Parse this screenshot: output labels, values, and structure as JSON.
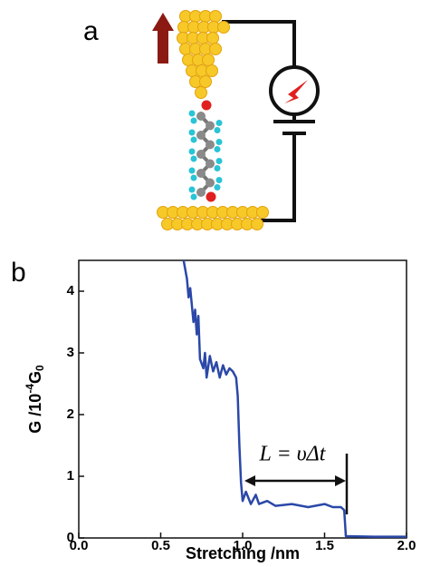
{
  "panel_a": {
    "label": "a"
  },
  "panel_b": {
    "label": "b"
  },
  "chart_data": {
    "type": "line",
    "xlabel": "Stretching /nm",
    "ylabel": {
      "base": "G /10",
      "exponent": "-4",
      "unit": "G",
      "subscript": "0"
    },
    "annotation": "L = υΔt",
    "x": [
      0.64,
      0.66,
      0.67,
      0.68,
      0.7,
      0.71,
      0.72,
      0.73,
      0.74,
      0.76,
      0.77,
      0.78,
      0.8,
      0.82,
      0.84,
      0.86,
      0.88,
      0.9,
      0.92,
      0.94,
      0.96,
      0.97,
      0.98,
      0.99,
      1.0,
      1.02,
      1.05,
      1.08,
      1.1,
      1.15,
      1.2,
      1.3,
      1.4,
      1.5,
      1.55,
      1.6,
      1.62,
      1.63,
      1.8,
      2.0
    ],
    "series": [
      {
        "color": "#2b48a8",
        "values": [
          4.5,
          4.2,
          3.9,
          4.05,
          3.5,
          3.7,
          3.3,
          3.6,
          2.9,
          2.75,
          3.0,
          2.6,
          2.95,
          2.7,
          2.85,
          2.6,
          2.8,
          2.65,
          2.75,
          2.7,
          2.6,
          2.3,
          1.5,
          0.9,
          0.6,
          0.75,
          0.55,
          0.7,
          0.55,
          0.6,
          0.52,
          0.55,
          0.5,
          0.55,
          0.5,
          0.5,
          0.45,
          0.03,
          0.02,
          0.02
        ]
      }
    ],
    "xlim": [
      0,
      2
    ],
    "ylim": [
      0,
      4.5
    ],
    "xticks": [
      {
        "value": 0,
        "label": "0.0"
      },
      {
        "value": 0.5,
        "label": "0.5"
      },
      {
        "value": 1,
        "label": "1.0"
      },
      {
        "value": 1.5,
        "label": "1.5"
      },
      {
        "value": 2,
        "label": "2.0"
      }
    ],
    "yticks": [
      0,
      1,
      2,
      3,
      4
    ]
  }
}
